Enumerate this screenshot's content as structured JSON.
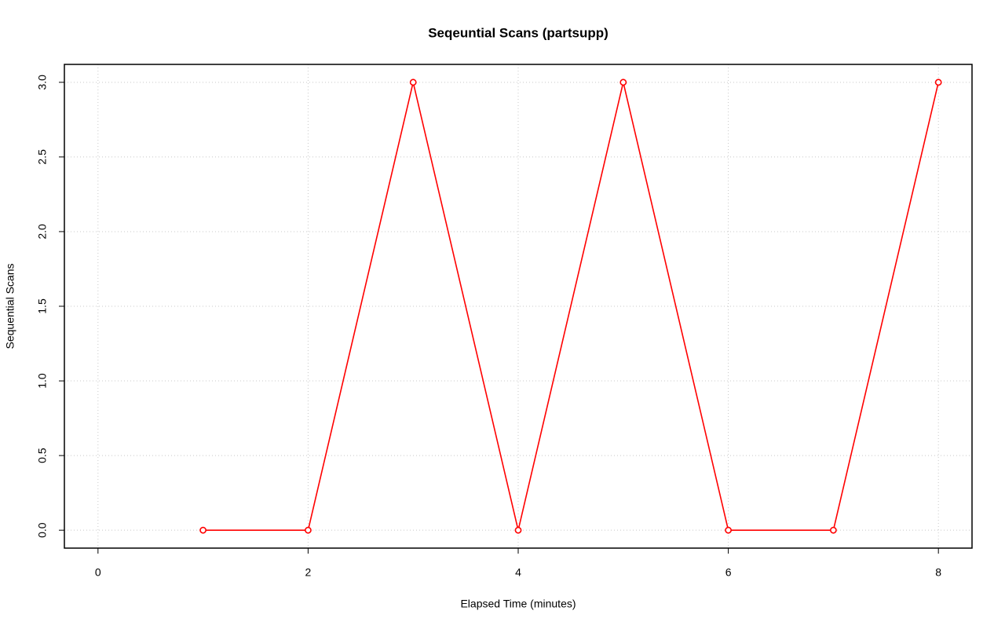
{
  "chart_data": {
    "type": "line",
    "title": "Seqeuntial Scans (partsupp)",
    "x_label": "Elapsed Time (minutes)",
    "y_label": "Sequential Scans",
    "x": [
      1,
      2,
      3,
      4,
      5,
      6,
      7,
      8
    ],
    "values": [
      0,
      0,
      3,
      0,
      3,
      0,
      0,
      3
    ],
    "color": "#ff0000",
    "xlim": [
      -0.32,
      8.32
    ],
    "xticks": [
      0,
      2,
      4,
      6,
      8
    ],
    "ylim": [
      -0.12,
      3.12
    ],
    "yticks": [
      {
        "value": 0,
        "label": "0.0"
      },
      {
        "value": 0.5,
        "label": "0.5"
      },
      {
        "value": 1,
        "label": "1.0"
      },
      {
        "value": 1.5,
        "label": "1.5"
      },
      {
        "value": 2,
        "label": "2.0"
      },
      {
        "value": 2.5,
        "label": "2.5"
      },
      {
        "value": 3,
        "label": "3.0"
      }
    ],
    "grid": true
  }
}
